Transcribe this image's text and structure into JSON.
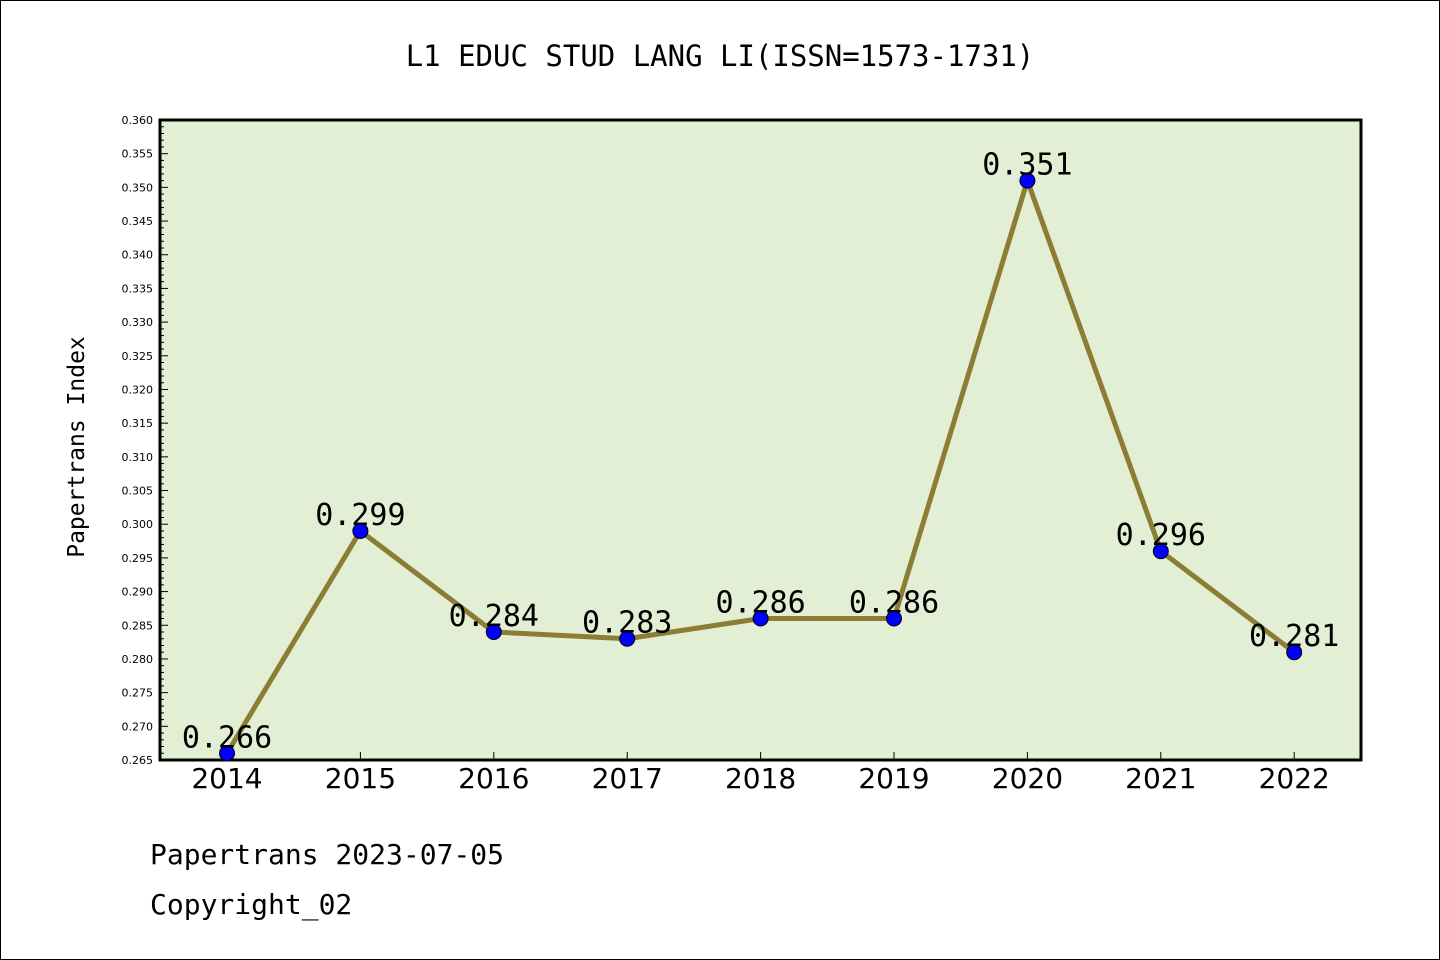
{
  "chart_data": {
    "type": "line",
    "title": "L1 EDUC STUD LANG LI(ISSN=1573-1731)",
    "xlabel": "",
    "ylabel": "Papertrans Index",
    "x": [
      "2014",
      "2015",
      "2016",
      "2017",
      "2018",
      "2019",
      "2020",
      "2021",
      "2022"
    ],
    "values": [
      0.266,
      0.299,
      0.284,
      0.283,
      0.286,
      0.286,
      0.351,
      0.296,
      0.281
    ],
    "data_labels": [
      "0.266",
      "0.299",
      "0.284",
      "0.283",
      "0.286",
      "0.286",
      "0.351",
      "0.296",
      "0.281"
    ],
    "ylim": [
      0.265,
      0.36
    ],
    "y_ticks": [
      "0.265",
      "0.270",
      "0.275",
      "0.280",
      "0.285",
      "0.290",
      "0.295",
      "0.300",
      "0.305",
      "0.310",
      "0.315",
      "0.320",
      "0.325",
      "0.330",
      "0.335",
      "0.340",
      "0.345",
      "0.350",
      "0.355",
      "0.360"
    ],
    "grid": false,
    "legend": "none",
    "colors": {
      "plot_background": "#e2efd5",
      "line": "#8c7d35",
      "marker": "#0000ff"
    }
  },
  "footer": {
    "line1": "Papertrans 2023-07-05",
    "line2": "Copyright_02"
  }
}
